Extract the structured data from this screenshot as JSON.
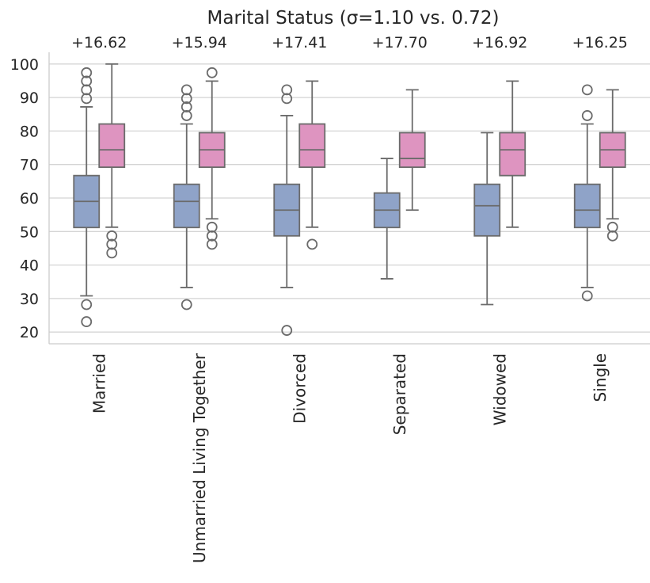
{
  "chart_data": {
    "type": "box",
    "title": "Marital Status (σ=1.10 vs. 0.72)",
    "xlabel": "",
    "ylabel": "",
    "ylim": [
      16.5,
      103.5
    ],
    "yticks": [
      20,
      30,
      40,
      50,
      60,
      70,
      80,
      90,
      100
    ],
    "grid": true,
    "categories": [
      "Married",
      "Unmarried Living Together",
      "Divorced",
      "Separated",
      "Widowed",
      "Single"
    ],
    "annotations": [
      "+16.62",
      "+15.94",
      "+17.41",
      "+17.70",
      "+16.92",
      "+16.25"
    ],
    "series": [
      {
        "color": "#8FA3C8",
        "boxes": [
          {
            "whislo": 30.8,
            "q1": 51.2,
            "med": 59.0,
            "q3": 66.7,
            "whishi": 87.2,
            "fliers": [
              23.1,
              28.2,
              89.7,
              92.3,
              94.9,
              97.4
            ]
          },
          {
            "whislo": 33.3,
            "q1": 51.2,
            "med": 59.0,
            "q3": 64.1,
            "whishi": 82.1,
            "fliers": [
              28.2,
              84.6,
              87.2,
              89.7,
              92.3
            ]
          },
          {
            "whislo": 33.3,
            "q1": 48.7,
            "med": 56.4,
            "q3": 64.1,
            "whishi": 84.6,
            "fliers": [
              20.5,
              89.7,
              92.3
            ]
          },
          {
            "whislo": 35.9,
            "q1": 51.2,
            "med": 56.4,
            "q3": 61.5,
            "whishi": 71.8,
            "fliers": []
          },
          {
            "whislo": 28.2,
            "q1": 48.7,
            "med": 57.7,
            "q3": 64.1,
            "whishi": 79.5,
            "fliers": []
          },
          {
            "whislo": 33.3,
            "q1": 51.2,
            "med": 56.4,
            "q3": 64.1,
            "whishi": 82.1,
            "fliers": [
              30.8,
              84.6,
              92.3
            ]
          }
        ]
      },
      {
        "color": "#DE94C0",
        "boxes": [
          {
            "whislo": 51.3,
            "q1": 69.2,
            "med": 74.4,
            "q3": 82.1,
            "whishi": 100.0,
            "fliers": [
              43.6,
              46.2,
              48.7
            ]
          },
          {
            "whislo": 53.8,
            "q1": 69.2,
            "med": 74.4,
            "q3": 79.5,
            "whishi": 94.9,
            "fliers": [
              46.2,
              48.7,
              51.3,
              97.4
            ]
          },
          {
            "whislo": 51.3,
            "q1": 69.2,
            "med": 74.4,
            "q3": 82.1,
            "whishi": 94.9,
            "fliers": [
              46.2
            ]
          },
          {
            "whislo": 56.4,
            "q1": 69.2,
            "med": 71.8,
            "q3": 79.5,
            "whishi": 92.3,
            "fliers": []
          },
          {
            "whislo": 51.3,
            "q1": 66.7,
            "med": 74.4,
            "q3": 79.5,
            "whishi": 94.9,
            "fliers": []
          },
          {
            "whislo": 53.8,
            "q1": 69.2,
            "med": 74.4,
            "q3": 79.5,
            "whishi": 92.3,
            "fliers": [
              48.7,
              51.3
            ]
          }
        ]
      }
    ]
  }
}
